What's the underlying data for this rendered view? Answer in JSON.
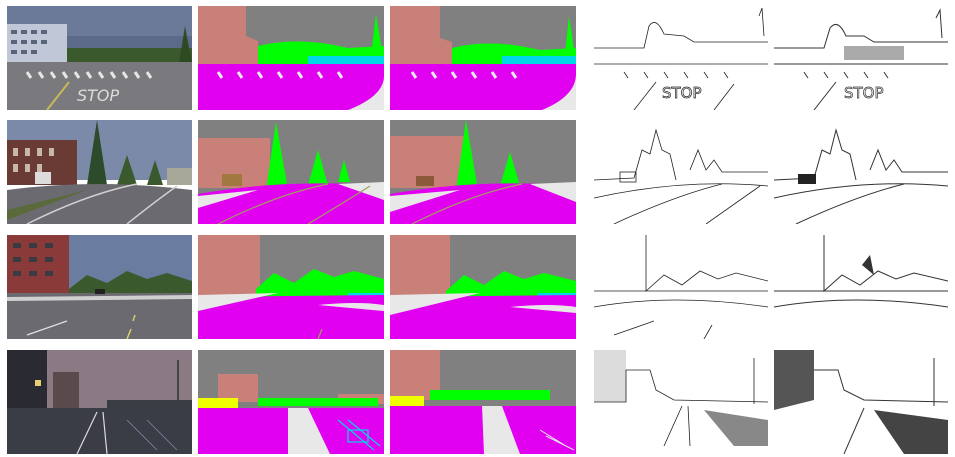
{
  "figure": {
    "columns": [
      "rgb",
      "segmentation-gt",
      "segmentation-pred",
      "edges-gt",
      "edges-pred"
    ],
    "rows": [
      {
        "scene": "crosswalk-stop",
        "road_text": "STOP",
        "time": "day"
      },
      {
        "scene": "residential-curve",
        "time": "day"
      },
      {
        "scene": "highway-trees",
        "time": "day"
      },
      {
        "scene": "city-dusk",
        "time": "dusk"
      }
    ],
    "palette": {
      "road": "#e100f0",
      "sky": "#808080",
      "building": "#c88078",
      "vegetation": "#00ff00",
      "sidewalk": "#e8e8e8",
      "water_cyan": "#00d8e8",
      "pole_yellow": "#f0ff00",
      "lane_line": "#a0a060"
    }
  }
}
